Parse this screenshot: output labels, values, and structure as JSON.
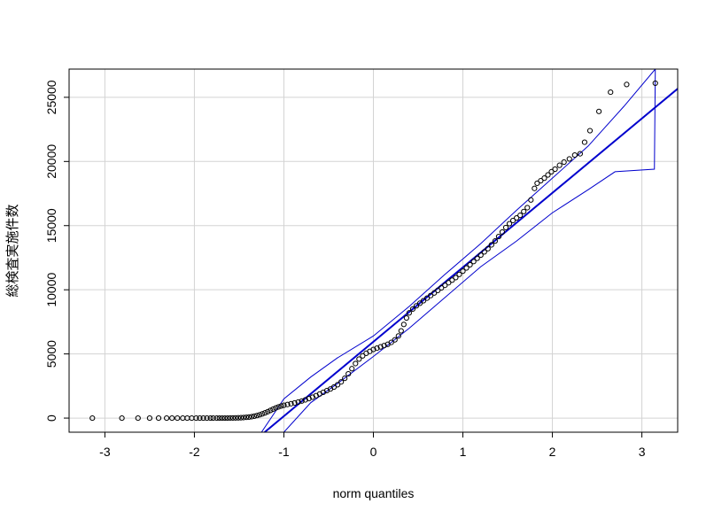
{
  "chart_data": {
    "type": "scatter",
    "title": "",
    "xlabel": "norm quantiles",
    "ylabel": "総検査実施件数",
    "xlim": [
      -3.4,
      3.4
    ],
    "ylim": [
      -1100,
      27200
    ],
    "x_ticks": [
      -3,
      -2,
      -1,
      0,
      1,
      2,
      3
    ],
    "y_ticks": [
      0,
      5000,
      10000,
      15000,
      20000,
      25000
    ],
    "grid": true,
    "legend": "none",
    "colors": {
      "points": "#000000",
      "reference_line": "#0000cd",
      "envelope": "#0000cd",
      "grid": "#d3d3d3"
    },
    "reference_line": {
      "intercept": 5950,
      "slope": 5800
    },
    "envelope": {
      "upper": [
        [
          -1.25,
          -1100
        ],
        [
          -1.0,
          1500
        ],
        [
          -0.7,
          3200
        ],
        [
          -0.4,
          4700
        ],
        [
          0,
          6400
        ],
        [
          0.4,
          8700
        ],
        [
          0.8,
          11200
        ],
        [
          1.2,
          13600
        ],
        [
          1.6,
          16200
        ],
        [
          2.0,
          18700
        ],
        [
          2.4,
          21200
        ],
        [
          2.8,
          24300
        ],
        [
          3.15,
          27200
        ]
      ],
      "lower": [
        [
          -1.0,
          -1100
        ],
        [
          -0.7,
          1200
        ],
        [
          -0.4,
          2700
        ],
        [
          0,
          4800
        ],
        [
          0.4,
          7000
        ],
        [
          0.8,
          9400
        ],
        [
          1.2,
          11800
        ],
        [
          1.6,
          13800
        ],
        [
          2.0,
          16000
        ],
        [
          2.4,
          17800
        ],
        [
          2.7,
          19200
        ],
        [
          3.14,
          19400
        ],
        [
          3.15,
          27200
        ]
      ]
    },
    "series": [
      {
        "points": [
          [
            -3.14,
            0
          ],
          [
            -2.81,
            0
          ],
          [
            -2.63,
            0
          ],
          [
            -2.5,
            0
          ],
          [
            -2.4,
            0
          ],
          [
            -2.31,
            0
          ],
          [
            -2.25,
            0
          ],
          [
            -2.19,
            0
          ],
          [
            -2.13,
            0
          ],
          [
            -2.08,
            0
          ],
          [
            -2.03,
            0
          ],
          [
            -1.98,
            0
          ],
          [
            -1.94,
            0
          ],
          [
            -1.9,
            0
          ],
          [
            -1.86,
            0
          ],
          [
            -1.82,
            0
          ],
          [
            -1.79,
            0
          ],
          [
            -1.75,
            0
          ],
          [
            -1.72,
            0
          ],
          [
            -1.69,
            0
          ],
          [
            -1.66,
            0
          ],
          [
            -1.63,
            0
          ],
          [
            -1.6,
            10
          ],
          [
            -1.57,
            10
          ],
          [
            -1.54,
            15
          ],
          [
            -1.51,
            20
          ],
          [
            -1.48,
            30
          ],
          [
            -1.45,
            40
          ],
          [
            -1.42,
            60
          ],
          [
            -1.39,
            80
          ],
          [
            -1.36,
            110
          ],
          [
            -1.33,
            150
          ],
          [
            -1.3,
            200
          ],
          [
            -1.27,
            260
          ],
          [
            -1.24,
            330
          ],
          [
            -1.21,
            410
          ],
          [
            -1.18,
            500
          ],
          [
            -1.15,
            600
          ],
          [
            -1.12,
            700
          ],
          [
            -1.09,
            790
          ],
          [
            -1.06,
            870
          ],
          [
            -1.03,
            940
          ],
          [
            -1.0,
            1000
          ],
          [
            -0.96,
            1060
          ],
          [
            -0.92,
            1120
          ],
          [
            -0.88,
            1180
          ],
          [
            -0.84,
            1250
          ],
          [
            -0.8,
            1330
          ],
          [
            -0.76,
            1420
          ],
          [
            -0.72,
            1520
          ],
          [
            -0.68,
            1630
          ],
          [
            -0.64,
            1750
          ],
          [
            -0.6,
            1880
          ],
          [
            -0.56,
            2010
          ],
          [
            -0.52,
            2140
          ],
          [
            -0.48,
            2270
          ],
          [
            -0.44,
            2420
          ],
          [
            -0.4,
            2600
          ],
          [
            -0.36,
            2820
          ],
          [
            -0.32,
            3100
          ],
          [
            -0.28,
            3450
          ],
          [
            -0.24,
            3850
          ],
          [
            -0.2,
            4250
          ],
          [
            -0.16,
            4600
          ],
          [
            -0.12,
            4850
          ],
          [
            -0.08,
            5050
          ],
          [
            -0.04,
            5200
          ],
          [
            0.0,
            5350
          ],
          [
            0.04,
            5450
          ],
          [
            0.08,
            5550
          ],
          [
            0.12,
            5650
          ],
          [
            0.16,
            5750
          ],
          [
            0.2,
            5900
          ],
          [
            0.24,
            6100
          ],
          [
            0.28,
            6400
          ],
          [
            0.31,
            6800
          ],
          [
            0.34,
            7300
          ],
          [
            0.37,
            7800
          ],
          [
            0.4,
            8200
          ],
          [
            0.44,
            8500
          ],
          [
            0.48,
            8750
          ],
          [
            0.52,
            8950
          ],
          [
            0.56,
            9150
          ],
          [
            0.6,
            9350
          ],
          [
            0.64,
            9550
          ],
          [
            0.68,
            9750
          ],
          [
            0.72,
            9950
          ],
          [
            0.76,
            10150
          ],
          [
            0.8,
            10350
          ],
          [
            0.84,
            10550
          ],
          [
            0.88,
            10750
          ],
          [
            0.92,
            10950
          ],
          [
            0.96,
            11200
          ],
          [
            1.0,
            11450
          ],
          [
            1.04,
            11700
          ],
          [
            1.08,
            11950
          ],
          [
            1.12,
            12200
          ],
          [
            1.16,
            12450
          ],
          [
            1.2,
            12700
          ],
          [
            1.24,
            12950
          ],
          [
            1.28,
            13200
          ],
          [
            1.32,
            13500
          ],
          [
            1.36,
            13800
          ],
          [
            1.4,
            14150
          ],
          [
            1.44,
            14500
          ],
          [
            1.48,
            14850
          ],
          [
            1.52,
            15150
          ],
          [
            1.56,
            15400
          ],
          [
            1.6,
            15600
          ],
          [
            1.64,
            15800
          ],
          [
            1.68,
            16100
          ],
          [
            1.72,
            16400
          ],
          [
            1.76,
            17000
          ],
          [
            1.8,
            17900
          ],
          [
            1.83,
            18300
          ],
          [
            1.87,
            18500
          ],
          [
            1.91,
            18700
          ],
          [
            1.95,
            18950
          ],
          [
            1.99,
            19200
          ],
          [
            2.03,
            19400
          ],
          [
            2.08,
            19700
          ],
          [
            2.13,
            19950
          ],
          [
            2.19,
            20200
          ],
          [
            2.25,
            20500
          ],
          [
            2.31,
            20600
          ],
          [
            2.36,
            21500
          ],
          [
            2.42,
            22400
          ],
          [
            2.52,
            23900
          ],
          [
            2.65,
            25400
          ],
          [
            2.83,
            26000
          ],
          [
            3.15,
            26100
          ]
        ]
      }
    ]
  }
}
